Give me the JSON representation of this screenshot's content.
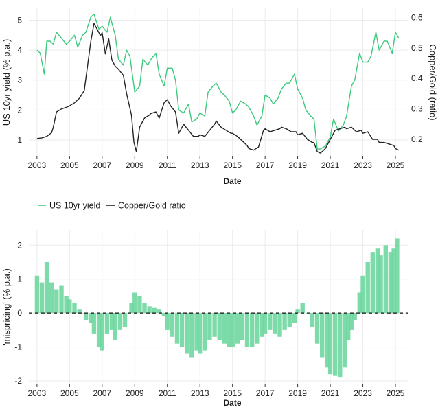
{
  "legend": {
    "items": [
      {
        "label": "US 10yr yield",
        "color": "#3cc97c"
      },
      {
        "label": "Copper/Gold ratio",
        "color": "#222222"
      }
    ]
  },
  "chart_data": [
    {
      "type": "line",
      "xlabel": "Date",
      "ylabel_left": "US 10yr yield (% p.a.)",
      "ylabel_right": "Copper/Gold (ratio)",
      "x_ticks": [
        "2003",
        "2005",
        "2007",
        "2009",
        "2011",
        "2013",
        "2015",
        "2017",
        "2019",
        "2021",
        "2023",
        "2025"
      ],
      "y_left_ticks": [
        "1",
        "2",
        "3",
        "4",
        "5"
      ],
      "y_right_ticks": [
        "0.2",
        "0.3",
        "0.4",
        "0.5",
        "0.6"
      ],
      "ylim_left": [
        0.45,
        5.4
      ],
      "ylim_right": [
        0.144,
        0.63
      ],
      "xlim": [
        2002.5,
        2025.8
      ],
      "grid": true,
      "legend_position": "bottom",
      "series": [
        {
          "name": "US 10yr yield",
          "axis": "left",
          "color": "#3cc97c",
          "x": [
            2003.0,
            2003.2,
            2003.45,
            2003.6,
            2003.8,
            2004.0,
            2004.2,
            2004.5,
            2004.8,
            2005.0,
            2005.3,
            2005.5,
            2005.8,
            2006.0,
            2006.3,
            2006.5,
            2006.8,
            2007.0,
            2007.3,
            2007.5,
            2007.8,
            2008.0,
            2008.3,
            2008.5,
            2008.7,
            2008.9,
            2009.0,
            2009.3,
            2009.5,
            2009.8,
            2010.0,
            2010.3,
            2010.5,
            2010.8,
            2011.0,
            2011.3,
            2011.5,
            2011.7,
            2012.0,
            2012.3,
            2012.5,
            2012.8,
            2013.0,
            2013.3,
            2013.5,
            2013.8,
            2014.0,
            2014.3,
            2014.5,
            2014.8,
            2015.0,
            2015.2,
            2015.5,
            2015.8,
            2016.0,
            2016.3,
            2016.5,
            2016.8,
            2017.0,
            2017.3,
            2017.5,
            2017.8,
            2018.0,
            2018.3,
            2018.5,
            2018.8,
            2019.0,
            2019.3,
            2019.5,
            2019.8,
            2020.0,
            2020.2,
            2020.4,
            2020.7,
            2021.0,
            2021.2,
            2021.5,
            2021.8,
            2022.0,
            2022.3,
            2022.5,
            2022.8,
            2023.0,
            2023.3,
            2023.5,
            2023.8,
            2024.0,
            2024.3,
            2024.5,
            2024.8,
            2025.0,
            2025.2
          ],
          "values": [
            4.0,
            3.9,
            3.2,
            4.3,
            4.3,
            4.2,
            4.6,
            4.4,
            4.2,
            4.3,
            4.5,
            4.1,
            4.5,
            4.6,
            5.1,
            5.2,
            4.7,
            4.8,
            4.6,
            5.1,
            4.5,
            3.7,
            3.5,
            4.0,
            3.8,
            3.0,
            2.6,
            2.8,
            3.7,
            3.5,
            3.7,
            3.9,
            3.2,
            2.8,
            3.4,
            3.4,
            3.0,
            2.0,
            1.9,
            2.2,
            1.6,
            1.7,
            1.9,
            1.8,
            2.6,
            2.8,
            2.9,
            2.6,
            2.5,
            2.3,
            1.9,
            2.0,
            2.3,
            2.2,
            2.1,
            1.8,
            1.5,
            1.8,
            2.5,
            2.4,
            2.2,
            2.4,
            2.7,
            2.9,
            2.9,
            3.2,
            2.7,
            2.4,
            2.0,
            1.8,
            1.7,
            0.7,
            0.7,
            0.8,
            1.1,
            1.7,
            1.3,
            1.5,
            1.8,
            2.8,
            3.0,
            3.9,
            3.6,
            3.6,
            3.8,
            4.6,
            4.0,
            4.3,
            4.3,
            3.9,
            4.6,
            4.4
          ]
        },
        {
          "name": "Copper/Gold ratio",
          "axis": "right",
          "color": "#222222",
          "x": [
            2003.0,
            2003.3,
            2003.6,
            2003.9,
            2004.0,
            2004.2,
            2004.5,
            2004.8,
            2005.0,
            2005.3,
            2005.6,
            2005.9,
            2006.0,
            2006.3,
            2006.5,
            2006.7,
            2006.9,
            2007.0,
            2007.2,
            2007.4,
            2007.6,
            2007.8,
            2008.0,
            2008.3,
            2008.5,
            2008.8,
            2008.95,
            2009.1,
            2009.3,
            2009.6,
            2009.9,
            2010.0,
            2010.3,
            2010.5,
            2010.8,
            2011.0,
            2011.2,
            2011.5,
            2011.7,
            2012.0,
            2012.3,
            2012.6,
            2012.9,
            2013.0,
            2013.3,
            2013.6,
            2013.9,
            2014.0,
            2014.3,
            2014.6,
            2014.9,
            2015.0,
            2015.3,
            2015.6,
            2015.9,
            2016.0,
            2016.3,
            2016.6,
            2016.9,
            2017.0,
            2017.3,
            2017.6,
            2017.9,
            2018.0,
            2018.3,
            2018.6,
            2018.9,
            2019.0,
            2019.3,
            2019.6,
            2019.9,
            2020.0,
            2020.2,
            2020.4,
            2020.7,
            2021.0,
            2021.3,
            2021.6,
            2021.9,
            2022.0,
            2022.3,
            2022.6,
            2022.9,
            2023.0,
            2023.3,
            2023.6,
            2023.9,
            2024.0,
            2024.3,
            2024.6,
            2024.9,
            2025.0,
            2025.2
          ],
          "values": [
            0.203,
            0.205,
            0.21,
            0.222,
            0.24,
            0.29,
            0.3,
            0.305,
            0.31,
            0.32,
            0.335,
            0.36,
            0.4,
            0.52,
            0.58,
            0.56,
            0.54,
            0.55,
            0.48,
            0.53,
            0.46,
            0.44,
            0.43,
            0.41,
            0.35,
            0.28,
            0.19,
            0.16,
            0.24,
            0.27,
            0.28,
            0.285,
            0.29,
            0.27,
            0.32,
            0.33,
            0.31,
            0.29,
            0.22,
            0.25,
            0.23,
            0.21,
            0.21,
            0.215,
            0.21,
            0.23,
            0.25,
            0.26,
            0.24,
            0.23,
            0.22,
            0.22,
            0.21,
            0.195,
            0.18,
            0.17,
            0.165,
            0.175,
            0.23,
            0.235,
            0.225,
            0.23,
            0.235,
            0.24,
            0.235,
            0.225,
            0.225,
            0.215,
            0.22,
            0.2,
            0.19,
            0.19,
            0.16,
            0.155,
            0.17,
            0.2,
            0.23,
            0.235,
            0.24,
            0.235,
            0.24,
            0.225,
            0.23,
            0.22,
            0.225,
            0.2,
            0.2,
            0.19,
            0.19,
            0.185,
            0.18,
            0.17,
            0.165
          ]
        }
      ]
    },
    {
      "type": "bar",
      "xlabel": "Date",
      "ylabel": "'mispricing' (% p.a.)",
      "x_ticks": [
        "2003",
        "2005",
        "2007",
        "2009",
        "2011",
        "2013",
        "2015",
        "2017",
        "2019",
        "2021",
        "2023",
        "2025"
      ],
      "y_ticks": [
        "-2",
        "-1",
        "0",
        "1",
        "2"
      ],
      "ylim": [
        -2.1,
        2.45
      ],
      "xlim": [
        2002.5,
        2025.8
      ],
      "grid": true,
      "zero_line": "dashed",
      "color": "#6fd6a0",
      "x": [
        2003.0,
        2003.3,
        2003.6,
        2003.9,
        2004.2,
        2004.5,
        2004.8,
        2005.0,
        2005.3,
        2005.6,
        2006.0,
        2006.3,
        2006.5,
        2006.8,
        2007.0,
        2007.3,
        2007.6,
        2007.8,
        2008.1,
        2008.4,
        2008.8,
        2009.0,
        2009.3,
        2009.6,
        2009.9,
        2010.2,
        2010.5,
        2010.8,
        2011.0,
        2011.3,
        2011.6,
        2011.9,
        2012.2,
        2012.5,
        2012.8,
        2013.0,
        2013.3,
        2013.6,
        2013.9,
        2014.2,
        2014.5,
        2014.8,
        2015.0,
        2015.3,
        2015.6,
        2015.9,
        2016.2,
        2016.5,
        2016.8,
        2017.0,
        2017.3,
        2017.6,
        2017.9,
        2018.2,
        2018.5,
        2018.8,
        2019.0,
        2019.3,
        2019.6,
        2019.9,
        2020.2,
        2020.5,
        2020.8,
        2021.0,
        2021.3,
        2021.6,
        2021.9,
        2022.1,
        2022.3,
        2022.5,
        2022.8,
        2023.0,
        2023.3,
        2023.6,
        2023.9,
        2024.1,
        2024.4,
        2024.7,
        2024.9,
        2025.1
      ],
      "values": [
        1.1,
        0.9,
        1.5,
        0.9,
        0.7,
        0.8,
        0.5,
        0.4,
        0.3,
        0.1,
        -0.2,
        -0.3,
        -0.6,
        -1.0,
        -1.1,
        -0.6,
        -0.5,
        -0.8,
        -0.5,
        -0.4,
        0.3,
        0.6,
        0.5,
        0.3,
        0.2,
        0.15,
        0.1,
        -0.1,
        -0.5,
        -0.7,
        -0.9,
        -1.0,
        -1.2,
        -1.3,
        -1.1,
        -1.2,
        -1.1,
        -0.8,
        -0.7,
        -0.8,
        -0.9,
        -1.0,
        -1.0,
        -0.9,
        -0.8,
        -1.0,
        -1.0,
        -0.9,
        -0.7,
        -0.6,
        -0.5,
        -0.6,
        -0.7,
        -0.5,
        -0.4,
        -0.3,
        0.1,
        0.3,
        0.0,
        -0.4,
        -0.9,
        -1.3,
        -1.6,
        -1.8,
        -1.85,
        -1.9,
        -1.6,
        -0.8,
        -0.5,
        -0.2,
        0.6,
        1.1,
        1.5,
        1.8,
        1.9,
        1.7,
        2.0,
        1.8,
        1.9,
        2.2
      ]
    }
  ]
}
